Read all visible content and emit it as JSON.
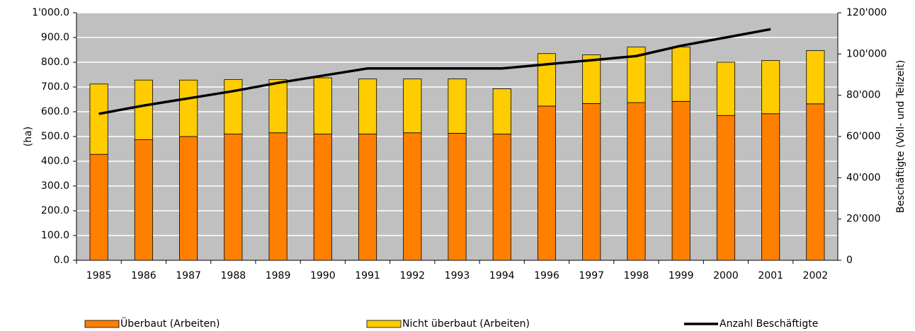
{
  "chart_data": {
    "type": "bar",
    "stacked": true,
    "ylabel": "(ha)",
    "y2label": "Beschäftigte (Voll- und Teilzeit)",
    "categories": [
      "1985",
      "1986",
      "1987",
      "1988",
      "1989",
      "1990",
      "1991",
      "1992",
      "1993",
      "1994",
      "1996",
      "1997",
      "1998",
      "1999",
      "2000",
      "2001",
      "2002"
    ],
    "series": [
      {
        "name": "Überbaut (Arbeiten)",
        "color": "#ff7f00",
        "values": [
          428,
          487,
          500,
          510,
          515,
          510,
          510,
          515,
          513,
          510,
          623,
          633,
          637,
          642,
          585,
          592,
          632
        ]
      },
      {
        "name": "Nicht überbaut (Arbeiten)",
        "color": "#ffcc00",
        "values": [
          284,
          241,
          228,
          220,
          215,
          227,
          223,
          218,
          220,
          183,
          212,
          197,
          225,
          220,
          215,
          215,
          215
        ]
      },
      {
        "name": "Anzahl Beschäftigte",
        "color": "#000000",
        "type": "line",
        "axis": "y2",
        "values": [
          71000,
          75000,
          78500,
          82000,
          86000,
          89500,
          93000,
          93000,
          93000,
          93000,
          95000,
          97000,
          99000,
          104000,
          108000,
          112000,
          null
        ]
      }
    ],
    "ylim": [
      0,
      1000
    ],
    "yticks": [
      {
        "value": 0,
        "label": "0.0"
      },
      {
        "value": 100,
        "label": "100.0"
      },
      {
        "value": 200,
        "label": "200.0"
      },
      {
        "value": 300,
        "label": "300.0"
      },
      {
        "value": 400,
        "label": "400.0"
      },
      {
        "value": 500,
        "label": "500.0"
      },
      {
        "value": 600,
        "label": "600.0"
      },
      {
        "value": 700,
        "label": "700.0"
      },
      {
        "value": 800,
        "label": "800.0"
      },
      {
        "value": 900,
        "label": "900.0"
      },
      {
        "value": 1000,
        "label": "1'000.0"
      }
    ],
    "y2lim": [
      0,
      120000
    ],
    "y2ticks": [
      0,
      {
        "value": 20000,
        "label": "20'000"
      },
      {
        "value": 40000,
        "label": "40'000"
      },
      {
        "value": 60000,
        "label": "60'000"
      },
      {
        "value": 80000,
        "label": "80'000"
      },
      {
        "value": 100000,
        "label": "100'000"
      },
      {
        "value": 120000,
        "label": "120'000"
      }
    ],
    "grid": true,
    "legend": "bottom"
  }
}
